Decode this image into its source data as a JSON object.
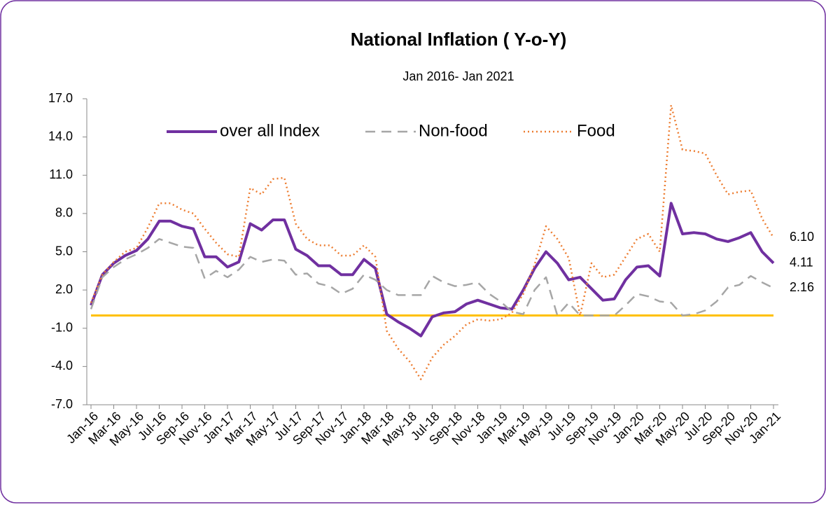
{
  "chart_data": {
    "type": "line",
    "title": "National Inflation ( Y-o-Y)",
    "subtitle": "Jan 2016-  Jan 2021",
    "categories": [
      "Jan-16",
      null,
      "Mar-16",
      null,
      "May-16",
      null,
      "Jul-16",
      null,
      "Sep-16",
      null,
      "Nov-16",
      null,
      "Jan-17",
      null,
      "Mar-17",
      null,
      "May-17",
      null,
      "Jul-17",
      null,
      "Sep-17",
      null,
      "Nov-17",
      null,
      "Jan-18",
      null,
      "Mar-18",
      null,
      "May-18",
      null,
      "Jul-18",
      null,
      "Sep-18",
      null,
      "Nov-18",
      null,
      "Jan-19",
      null,
      "Mar-19",
      null,
      "May-19",
      null,
      "Jul-19",
      null,
      "Sep-19",
      null,
      "Nov-19",
      null,
      "Jan-20",
      null,
      "Mar-20",
      null,
      "May-20",
      null,
      "Jul-20",
      null,
      "Sep-20",
      null,
      "Nov-20",
      null,
      "Jan-21"
    ],
    "series": [
      {
        "name": "over all Index",
        "color": "#7030a0",
        "style": "solid",
        "values": [
          0.8,
          3.2,
          4.1,
          4.7,
          5.1,
          6.0,
          7.4,
          7.4,
          7.0,
          6.8,
          4.6,
          4.6,
          3.8,
          4.2,
          7.2,
          6.7,
          7.5,
          7.5,
          5.2,
          4.7,
          3.9,
          3.9,
          3.2,
          3.2,
          4.4,
          3.7,
          0.1,
          -0.5,
          -1.0,
          -1.6,
          -0.1,
          0.2,
          0.3,
          0.9,
          1.2,
          0.9,
          0.6,
          0.5,
          2.0,
          3.7,
          5.0,
          4.1,
          2.8,
          3.0,
          2.1,
          1.2,
          1.3,
          2.8,
          3.8,
          3.9,
          3.1,
          8.8,
          6.4,
          6.5,
          6.4,
          6.0,
          5.8,
          6.1,
          6.5,
          5.0,
          4.11
        ],
        "value_labels": [
          null,
          null,
          null,
          null,
          null,
          null,
          null,
          null,
          null,
          null,
          null,
          null,
          null,
          null,
          null,
          null,
          null,
          null,
          null,
          null,
          null,
          null,
          null,
          null,
          null,
          null,
          null,
          null,
          null,
          null,
          null,
          null,
          null,
          null,
          null,
          null,
          null,
          null,
          null,
          null,
          null,
          null,
          null,
          null,
          null,
          null,
          null,
          null,
          null,
          null,
          null,
          null,
          null,
          null,
          null,
          null,
          null,
          null,
          null,
          null,
          "4.11"
        ]
      },
      {
        "name": "Non-food",
        "color": "#a6a6a6",
        "style": "dashed",
        "values": [
          0.5,
          3.0,
          3.8,
          4.4,
          4.8,
          5.3,
          6.0,
          5.7,
          5.4,
          5.3,
          2.9,
          3.5,
          3.0,
          3.6,
          4.6,
          4.2,
          4.4,
          4.3,
          3.2,
          3.3,
          2.5,
          2.3,
          1.7,
          2.1,
          3.2,
          2.8,
          2.0,
          1.6,
          1.6,
          1.6,
          3.1,
          2.6,
          2.3,
          2.4,
          2.6,
          1.7,
          1.1,
          0.3,
          0.1,
          2.0,
          3.0,
          0.0,
          1.0,
          0.0,
          0.0,
          0.0,
          0.0,
          0.8,
          1.7,
          1.5,
          1.1,
          1.0,
          0.0,
          0.1,
          0.4,
          1.1,
          2.2,
          2.4,
          3.1,
          2.6,
          2.16
        ],
        "value_labels": [
          null,
          null,
          null,
          null,
          null,
          null,
          null,
          null,
          null,
          null,
          null,
          null,
          null,
          null,
          null,
          null,
          null,
          null,
          null,
          null,
          null,
          null,
          null,
          null,
          null,
          null,
          null,
          null,
          null,
          null,
          null,
          null,
          null,
          null,
          null,
          null,
          null,
          null,
          null,
          null,
          null,
          null,
          null,
          null,
          null,
          null,
          null,
          null,
          null,
          null,
          null,
          null,
          null,
          null,
          null,
          null,
          null,
          null,
          null,
          null,
          "2.16"
        ]
      },
      {
        "name": "Food",
        "color": "#ed7d31",
        "style": "dotted",
        "values": [
          1.0,
          3.2,
          4.2,
          5.0,
          5.3,
          6.9,
          8.8,
          8.8,
          8.3,
          8.0,
          6.8,
          5.7,
          4.8,
          4.6,
          10.0,
          9.5,
          10.7,
          10.8,
          7.2,
          6.0,
          5.5,
          5.5,
          4.7,
          4.7,
          5.5,
          4.6,
          -1.2,
          -2.6,
          -3.6,
          -5.0,
          -3.3,
          -2.3,
          -1.6,
          -0.7,
          -0.3,
          -0.4,
          -0.3,
          0.2,
          1.7,
          4.0,
          7.0,
          6.0,
          4.5,
          0.0,
          4.1,
          3.0,
          3.2,
          4.6,
          6.0,
          6.4,
          5.0,
          16.5,
          13.0,
          12.9,
          12.7,
          11.0,
          9.5,
          9.7,
          9.8,
          7.6,
          6.1
        ],
        "value_labels": [
          null,
          null,
          null,
          null,
          null,
          null,
          null,
          null,
          null,
          null,
          null,
          null,
          null,
          null,
          null,
          null,
          null,
          null,
          null,
          null,
          null,
          null,
          null,
          null,
          null,
          null,
          null,
          null,
          null,
          null,
          null,
          null,
          null,
          null,
          null,
          null,
          null,
          null,
          null,
          null,
          null,
          null,
          null,
          null,
          null,
          null,
          null,
          null,
          null,
          null,
          null,
          null,
          null,
          null,
          null,
          null,
          null,
          null,
          null,
          null,
          "6.10"
        ]
      }
    ],
    "reference_line": {
      "value": 0,
      "color": "#ffc000"
    },
    "ylim": [
      -7,
      17
    ],
    "yticks": [
      {
        "value": -7,
        "label": "-7.0"
      },
      {
        "value": -4,
        "label": "-4.0"
      },
      {
        "value": -1,
        "label": "-1.0"
      },
      {
        "value": 2,
        "label": "2.0"
      },
      {
        "value": 5,
        "label": "5.0"
      },
      {
        "value": 8,
        "label": "8.0"
      },
      {
        "value": 11,
        "label": "11.0"
      },
      {
        "value": 14,
        "label": "14.0"
      },
      {
        "value": 17,
        "label": "17.0"
      }
    ],
    "grid": false,
    "legend": "top"
  }
}
